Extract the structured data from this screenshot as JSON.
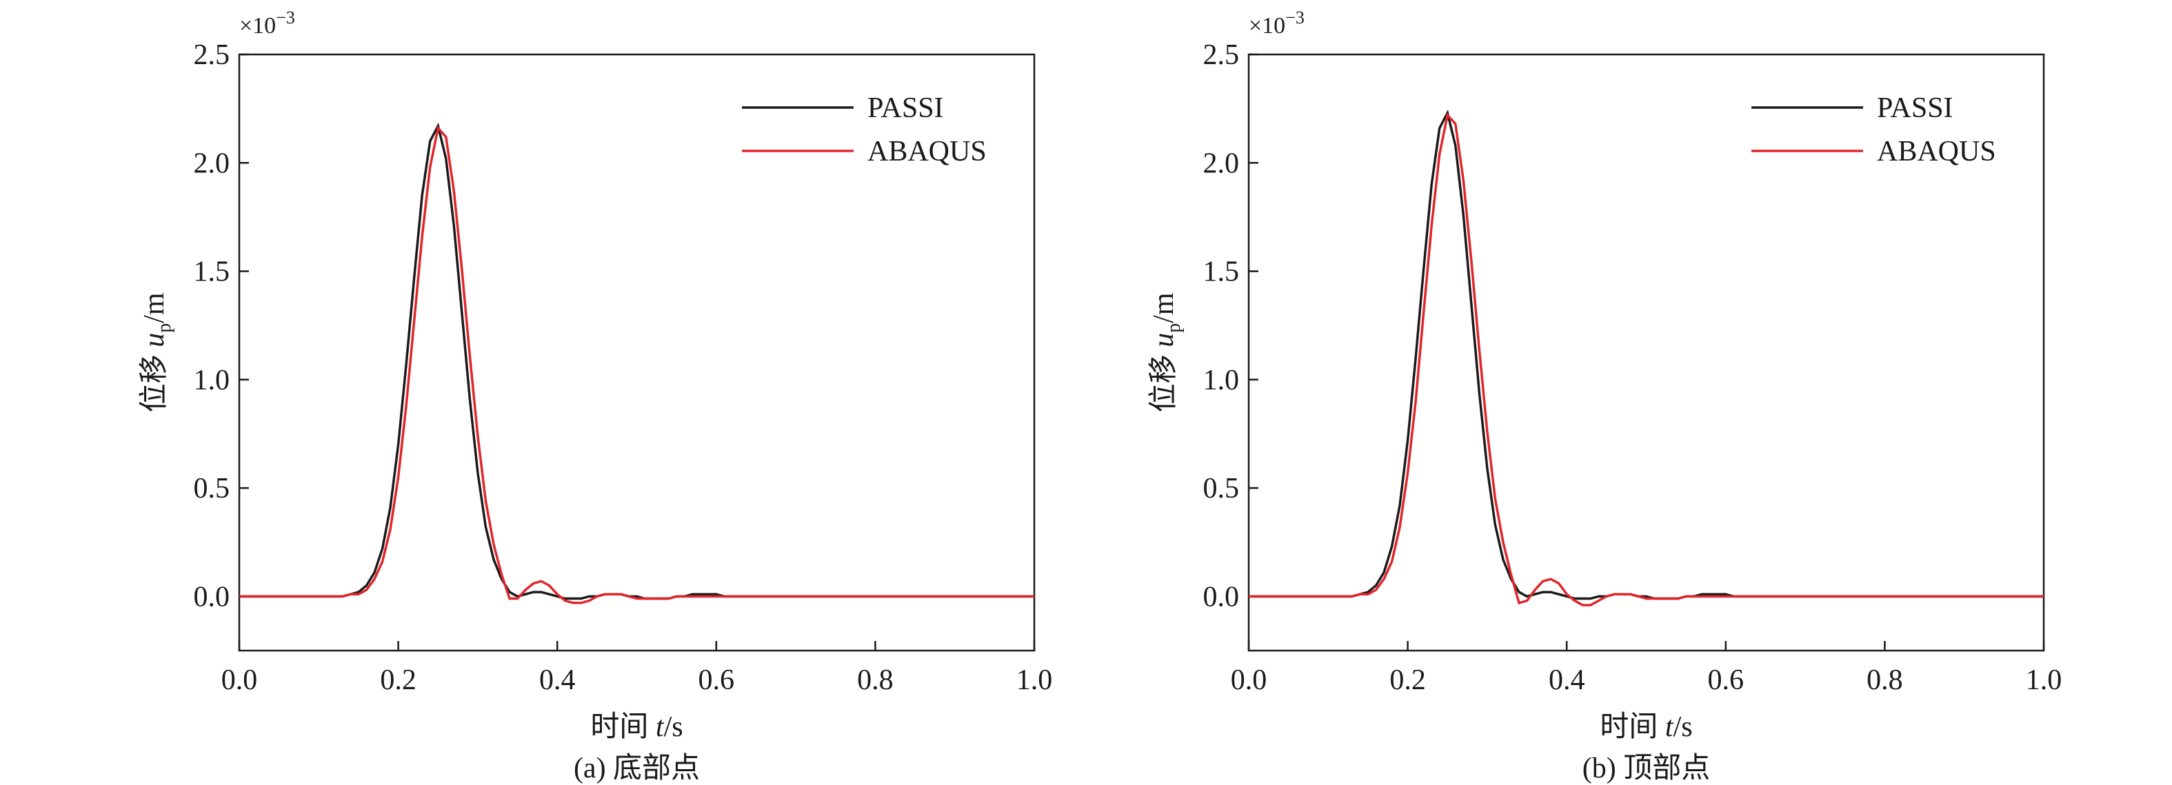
{
  "chart_data": [
    {
      "type": "line",
      "y_multiplier": {
        "base": "×10",
        "exponent": "−3"
      },
      "xlabel": {
        "prefix": "时间 ",
        "var": "t",
        "unit": "/s"
      },
      "ylabel": {
        "prefix": "位移 ",
        "var": "u",
        "sub": "p",
        "unit": "/m"
      },
      "caption": "(a) 底部点",
      "xlim": [
        0,
        1
      ],
      "ylim": [
        -0.25,
        2.5
      ],
      "xticks": [
        {
          "value": 0,
          "label": "0.0"
        },
        {
          "value": 0.2,
          "label": "0.2"
        },
        {
          "value": 0.4,
          "label": "0.4"
        },
        {
          "value": 0.6,
          "label": "0.6"
        },
        {
          "value": 0.8,
          "label": "0.8"
        },
        {
          "value": 1,
          "label": "1.0"
        }
      ],
      "yticks": [
        {
          "value": 0,
          "label": "0.0"
        },
        {
          "value": 0.5,
          "label": "0.5"
        },
        {
          "value": 1,
          "label": "1.0"
        },
        {
          "value": 1.5,
          "label": "1.5"
        },
        {
          "value": 2,
          "label": "2.0"
        },
        {
          "value": 2.5,
          "label": "2.5"
        }
      ],
      "legend": "upper right",
      "grid": false,
      "x": [
        0,
        0.05,
        0.1,
        0.11,
        0.12,
        0.13,
        0.14,
        0.15,
        0.16,
        0.17,
        0.18,
        0.19,
        0.2,
        0.21,
        0.22,
        0.23,
        0.24,
        0.25,
        0.26,
        0.27,
        0.28,
        0.29,
        0.3,
        0.31,
        0.32,
        0.33,
        0.34,
        0.35,
        0.36,
        0.37,
        0.38,
        0.39,
        0.4,
        0.41,
        0.42,
        0.43,
        0.44,
        0.45,
        0.46,
        0.47,
        0.48,
        0.49,
        0.5,
        0.51,
        0.52,
        0.53,
        0.54,
        0.55,
        0.56,
        0.57,
        0.58,
        0.59,
        0.6,
        0.61,
        0.62,
        0.63,
        0.64,
        0.65,
        0.66,
        0.67,
        0.68,
        0.69,
        0.7,
        0.8,
        0.9,
        1
      ],
      "series": [
        {
          "name": "PASSI",
          "color": "#1a1a1a",
          "values": [
            0,
            0,
            0,
            0,
            0,
            0,
            0.01,
            0.02,
            0.05,
            0.11,
            0.22,
            0.41,
            0.7,
            1.07,
            1.47,
            1.85,
            2.1,
            2.17,
            2.02,
            1.71,
            1.31,
            0.91,
            0.57,
            0.32,
            0.17,
            0.08,
            0.02,
            0,
            0.01,
            0.02,
            0.02,
            0.01,
            0,
            -0.01,
            -0.01,
            -0.01,
            0,
            0,
            0.01,
            0.01,
            0.01,
            0,
            0,
            -0.01,
            -0.01,
            -0.01,
            -0.01,
            0,
            0,
            0.01,
            0.01,
            0.01,
            0.01,
            0,
            0,
            0,
            0,
            0,
            0,
            0,
            0,
            0,
            0,
            0,
            0,
            0
          ]
        },
        {
          "name": "ABAQUS",
          "color": "#e0262b",
          "values": [
            0,
            0,
            0,
            0,
            0,
            0,
            0.01,
            0.01,
            0.03,
            0.08,
            0.16,
            0.31,
            0.55,
            0.88,
            1.27,
            1.66,
            1.98,
            2.16,
            2.12,
            1.87,
            1.51,
            1.11,
            0.74,
            0.44,
            0.24,
            0.1,
            -0.01,
            -0.01,
            0.03,
            0.06,
            0.07,
            0.05,
            0.01,
            -0.02,
            -0.03,
            -0.03,
            -0.02,
            0,
            0.01,
            0.01,
            0.01,
            0,
            -0.01,
            -0.01,
            -0.01,
            -0.01,
            -0.01,
            0,
            0,
            0,
            0,
            0,
            0,
            0,
            0,
            0,
            0,
            0,
            0,
            0,
            0,
            0,
            0,
            0,
            0,
            0
          ]
        }
      ]
    },
    {
      "type": "line",
      "y_multiplier": {
        "base": "×10",
        "exponent": "−3"
      },
      "xlabel": {
        "prefix": "时间 ",
        "var": "t",
        "unit": "/s"
      },
      "ylabel": {
        "prefix": "位移 ",
        "var": "u",
        "sub": "p",
        "unit": "/m"
      },
      "caption": "(b) 顶部点",
      "xlim": [
        0,
        1
      ],
      "ylim": [
        -0.25,
        2.5
      ],
      "xticks": [
        {
          "value": 0,
          "label": "0.0"
        },
        {
          "value": 0.2,
          "label": "0.2"
        },
        {
          "value": 0.4,
          "label": "0.4"
        },
        {
          "value": 0.6,
          "label": "0.6"
        },
        {
          "value": 0.8,
          "label": "0.8"
        },
        {
          "value": 1,
          "label": "1.0"
        }
      ],
      "yticks": [
        {
          "value": 0,
          "label": "0.0"
        },
        {
          "value": 0.5,
          "label": "0.5"
        },
        {
          "value": 1,
          "label": "1.0"
        },
        {
          "value": 1.5,
          "label": "1.5"
        },
        {
          "value": 2,
          "label": "2.0"
        },
        {
          "value": 2.5,
          "label": "2.5"
        }
      ],
      "legend": "upper right",
      "grid": false,
      "x": [
        0,
        0.05,
        0.1,
        0.11,
        0.12,
        0.13,
        0.14,
        0.15,
        0.16,
        0.17,
        0.18,
        0.19,
        0.2,
        0.21,
        0.22,
        0.23,
        0.24,
        0.25,
        0.26,
        0.27,
        0.28,
        0.29,
        0.3,
        0.31,
        0.32,
        0.33,
        0.34,
        0.35,
        0.36,
        0.37,
        0.38,
        0.39,
        0.4,
        0.41,
        0.42,
        0.43,
        0.44,
        0.45,
        0.46,
        0.47,
        0.48,
        0.49,
        0.5,
        0.51,
        0.52,
        0.53,
        0.54,
        0.55,
        0.56,
        0.57,
        0.58,
        0.59,
        0.6,
        0.61,
        0.62,
        0.63,
        0.64,
        0.65,
        0.66,
        0.67,
        0.68,
        0.69,
        0.7,
        0.8,
        0.9,
        1
      ],
      "series": [
        {
          "name": "PASSI",
          "color": "#1a1a1a",
          "values": [
            0,
            0,
            0,
            0,
            0,
            0,
            0.01,
            0.02,
            0.05,
            0.11,
            0.23,
            0.42,
            0.72,
            1.1,
            1.51,
            1.9,
            2.16,
            2.23,
            2.08,
            1.76,
            1.35,
            0.94,
            0.59,
            0.33,
            0.17,
            0.08,
            0.02,
            0,
            0.01,
            0.02,
            0.02,
            0.01,
            0,
            -0.01,
            -0.01,
            -0.01,
            0,
            0,
            0.01,
            0.01,
            0.01,
            0,
            0,
            -0.01,
            -0.01,
            -0.01,
            -0.01,
            0,
            0,
            0.01,
            0.01,
            0.01,
            0.01,
            0,
            0,
            0,
            0,
            0,
            0,
            0,
            0,
            0,
            0,
            0,
            0,
            0
          ]
        },
        {
          "name": "ABAQUS",
          "color": "#e0262b",
          "values": [
            0,
            0,
            0,
            0,
            0,
            0,
            0.01,
            0.01,
            0.03,
            0.08,
            0.16,
            0.32,
            0.57,
            0.9,
            1.31,
            1.71,
            2.04,
            2.22,
            2.18,
            1.92,
            1.55,
            1.14,
            0.76,
            0.45,
            0.25,
            0.1,
            -0.03,
            -0.02,
            0.03,
            0.07,
            0.08,
            0.06,
            0.01,
            -0.02,
            -0.04,
            -0.04,
            -0.02,
            0,
            0.01,
            0.01,
            0.01,
            0,
            -0.01,
            -0.01,
            -0.01,
            -0.01,
            -0.01,
            0,
            0,
            0,
            0,
            0,
            0,
            0,
            0,
            0,
            0,
            0,
            0,
            0,
            0,
            0,
            0,
            0,
            0,
            0
          ]
        }
      ]
    }
  ]
}
